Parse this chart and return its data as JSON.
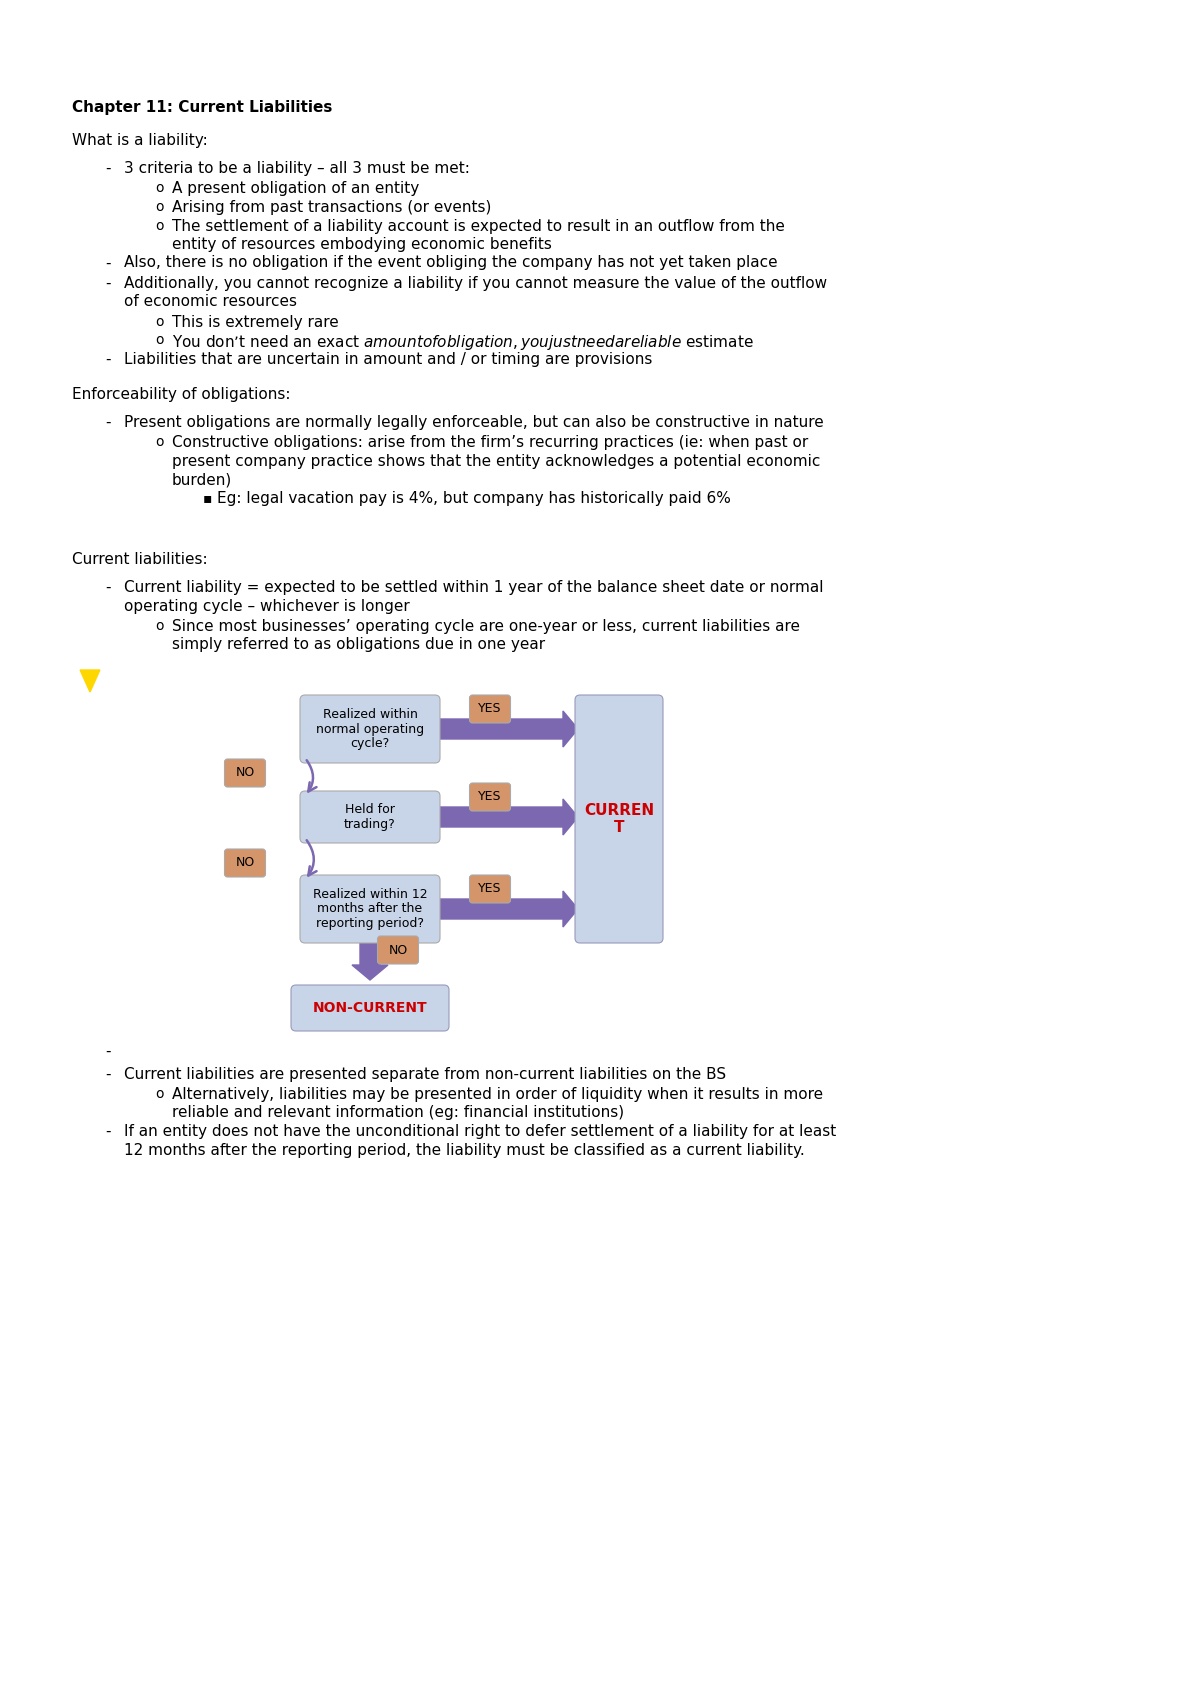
{
  "bg_color": "#ffffff",
  "title": "Chapter 11: Current Liabilities",
  "section1_header": "What is a liability:",
  "section1_bullets": [
    {
      "level": 1,
      "text": "3 criteria to be a liability – all 3 must be met:"
    },
    {
      "level": 2,
      "text": "A present obligation of an entity"
    },
    {
      "level": 2,
      "text": "Arising from past transactions (or events)"
    },
    {
      "level": 2,
      "text": "The settlement of a liability account is expected to result in an outflow from the\nentity of resources embodying economic benefits"
    },
    {
      "level": 1,
      "text": "Also, there is no obligation if the event obliging the company has not yet taken place"
    },
    {
      "level": 1,
      "text": "Additionally, you cannot recognize a liability if you cannot measure the value of the outflow\nof economic resources"
    },
    {
      "level": 2,
      "text": "This is extremely rare"
    },
    {
      "level": 2,
      "text": "You don’t need an exact $ amount of obligation, you just need a reliable $ estimate"
    },
    {
      "level": 1,
      "text": "Liabilities that are uncertain in amount and / or timing are provisions"
    }
  ],
  "section2_header": "Enforceability of obligations:",
  "section2_bullets": [
    {
      "level": 1,
      "text": "Present obligations are normally legally enforceable, but can also be constructive in nature"
    },
    {
      "level": 2,
      "text": "Constructive obligations: arise from the firm’s recurring practices (ie: when past or\npresent company practice shows that the entity acknowledges a potential economic\nburden)"
    },
    {
      "level": 3,
      "text": "Eg: legal vacation pay is 4%, but company has historically paid 6%"
    }
  ],
  "section3_header": "Current liabilities:",
  "section3_bullets": [
    {
      "level": 1,
      "text": "Current liability = expected to be settled within 1 year of the balance sheet date or normal\noperating cycle – whichever is longer"
    },
    {
      "level": 2,
      "text": "Since most businesses’ operating cycle are one-year or less, current liabilities are\nsimply referred to as obligations due in one year"
    }
  ],
  "section4_bullets": [
    {
      "level": 0,
      "text": ""
    },
    {
      "level": 1,
      "text": "Current liabilities are presented separate from non-current liabilities on the BS"
    },
    {
      "level": 2,
      "text": "Alternatively, liabilities may be presented in order of liquidity when it results in more\nreliable and relevant information (eg: financial institutions)"
    },
    {
      "level": 1,
      "text": "If an entity does not have the unconditional right to defer settlement of a liability for at least\n12 months after the reporting period, the liability must be classified as a current liability."
    }
  ],
  "flowchart": {
    "box_color": "#c8d4e8",
    "label_color": "#d4956a",
    "arrow_color": "#7b68b0",
    "current_color": "#cc0000",
    "noncurrent_color": "#cc0000",
    "box1_text": "Realized within\nnormal operating\ncycle?",
    "box2_text": "Held for\ntrading?",
    "box3_text": "Realized within 12\nmonths after the\nreporting period?",
    "box_right_text": "CURREN\nT",
    "box_bottom_text": "NON-CURRENT"
  }
}
